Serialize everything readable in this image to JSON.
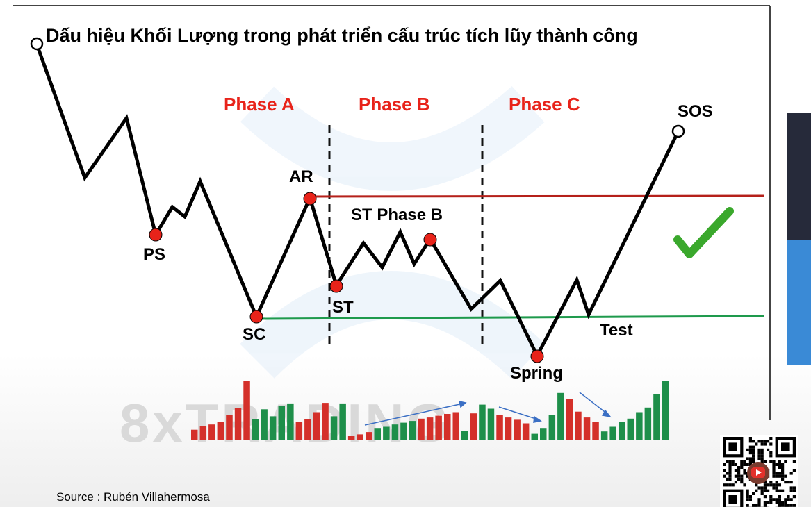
{
  "title": "Dấu hiệu Khối Lượng trong phát triển cấu trúc tích lũy thành công",
  "phases": [
    "Phase A",
    "Phase B",
    "Phase C"
  ],
  "labels": {
    "ps": "PS",
    "sc": "SC",
    "ar": "AR",
    "st": "ST",
    "st_phase_b": "ST Phase B",
    "spring": "Spring",
    "test": "Test",
    "sos": "SOS"
  },
  "watermark": "8xTRADING",
  "source": "Source : Rubén Villahermosa",
  "colors": {
    "phase_text": "#e8231a",
    "resistance_line": "#b5201a",
    "support_line": "#1e9a4c",
    "event_dot": "#e8231a",
    "volume_red": "#d4302a",
    "volume_green": "#1e8f4a",
    "volume_arrow": "#3b6fc4",
    "checkmark": "#3aa82c",
    "side_dark": "#262a3a",
    "side_blue": "#3a8ad6"
  },
  "volume_bars": [
    {
      "v": 0.17,
      "c": "red"
    },
    {
      "v": 0.23,
      "c": "red"
    },
    {
      "v": 0.26,
      "c": "red"
    },
    {
      "v": 0.3,
      "c": "red"
    },
    {
      "v": 0.42,
      "c": "red"
    },
    {
      "v": 0.54,
      "c": "red"
    },
    {
      "v": 1.0,
      "c": "red"
    },
    {
      "v": 0.35,
      "c": "green"
    },
    {
      "v": 0.52,
      "c": "green"
    },
    {
      "v": 0.4,
      "c": "green"
    },
    {
      "v": 0.58,
      "c": "green"
    },
    {
      "v": 0.62,
      "c": "green"
    },
    {
      "v": 0.3,
      "c": "red"
    },
    {
      "v": 0.35,
      "c": "red"
    },
    {
      "v": 0.47,
      "c": "red"
    },
    {
      "v": 0.63,
      "c": "red"
    },
    {
      "v": 0.4,
      "c": "green"
    },
    {
      "v": 0.62,
      "c": "green"
    },
    {
      "v": 0.06,
      "c": "red"
    },
    {
      "v": 0.09,
      "c": "red"
    },
    {
      "v": 0.13,
      "c": "red"
    },
    {
      "v": 0.2,
      "c": "green"
    },
    {
      "v": 0.22,
      "c": "green"
    },
    {
      "v": 0.26,
      "c": "green"
    },
    {
      "v": 0.29,
      "c": "green"
    },
    {
      "v": 0.32,
      "c": "green"
    },
    {
      "v": 0.36,
      "c": "red"
    },
    {
      "v": 0.38,
      "c": "red"
    },
    {
      "v": 0.41,
      "c": "red"
    },
    {
      "v": 0.44,
      "c": "red"
    },
    {
      "v": 0.47,
      "c": "red"
    },
    {
      "v": 0.15,
      "c": "green"
    },
    {
      "v": 0.45,
      "c": "red"
    },
    {
      "v": 0.6,
      "c": "green"
    },
    {
      "v": 0.53,
      "c": "green"
    },
    {
      "v": 0.42,
      "c": "red"
    },
    {
      "v": 0.38,
      "c": "red"
    },
    {
      "v": 0.34,
      "c": "red"
    },
    {
      "v": 0.28,
      "c": "red"
    },
    {
      "v": 0.1,
      "c": "green"
    },
    {
      "v": 0.2,
      "c": "green"
    },
    {
      "v": 0.42,
      "c": "green"
    },
    {
      "v": 0.8,
      "c": "green"
    },
    {
      "v": 0.7,
      "c": "red"
    },
    {
      "v": 0.48,
      "c": "red"
    },
    {
      "v": 0.38,
      "c": "red"
    },
    {
      "v": 0.3,
      "c": "red"
    },
    {
      "v": 0.14,
      "c": "green"
    },
    {
      "v": 0.22,
      "c": "green"
    },
    {
      "v": 0.3,
      "c": "green"
    },
    {
      "v": 0.36,
      "c": "green"
    },
    {
      "v": 0.47,
      "c": "green"
    },
    {
      "v": 0.55,
      "c": "green"
    },
    {
      "v": 0.78,
      "c": "green"
    },
    {
      "v": 1.0,
      "c": "green"
    }
  ]
}
